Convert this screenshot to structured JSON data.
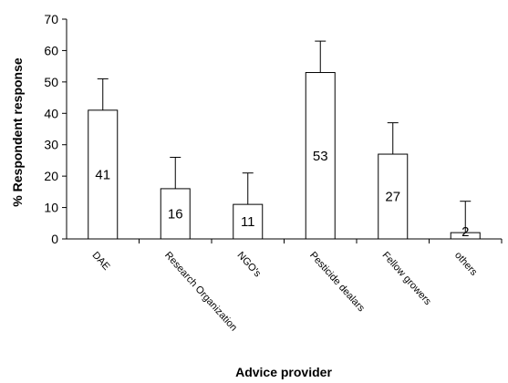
{
  "chart_data": {
    "type": "bar",
    "categories": [
      "DAE",
      "Research Organization",
      "NGO's",
      "Pesticide dealars",
      "Fellow growers",
      "others"
    ],
    "values": [
      41,
      16,
      11,
      53,
      27,
      2
    ],
    "error_upper": [
      51,
      26,
      21,
      63,
      37,
      12
    ],
    "data_labels": [
      "41",
      "16",
      "11",
      "53",
      "27",
      "2"
    ],
    "xlabel": "Advice provider",
    "ylabel": "% Respondent response",
    "ylim": [
      0,
      70
    ],
    "yticks": [
      0,
      10,
      20,
      30,
      40,
      50,
      60,
      70
    ],
    "grid": false,
    "bar_fill": "#ffffff",
    "bar_stroke": "#000000"
  }
}
